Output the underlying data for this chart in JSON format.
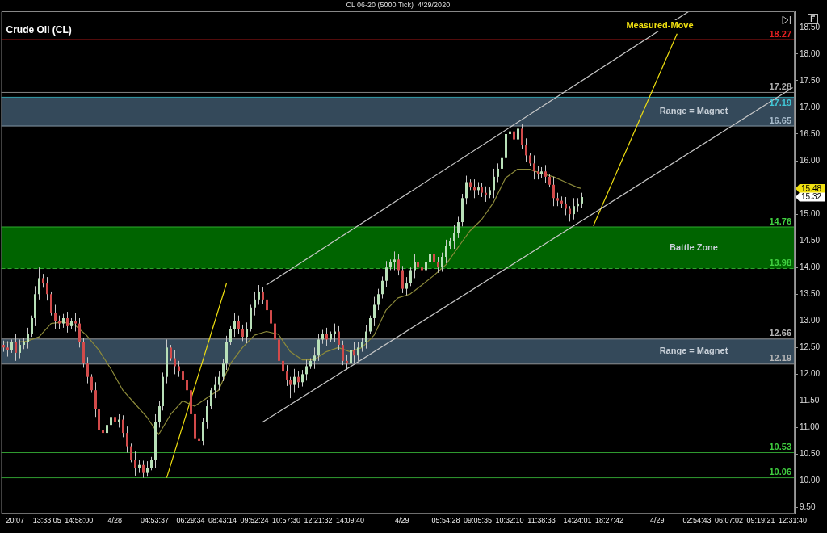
{
  "chart_data": {
    "type": "candlestick",
    "title": "Crude Oil (CL)",
    "subtitle": "CL 06-20 (5000 Tick)  4/29/2020",
    "marker": "none",
    "categories": [
      null,
      null,
      null,
      "20:07",
      null,
      null,
      null,
      null,
      null,
      null,
      null,
      "13:33:05",
      null,
      null,
      null,
      null,
      null,
      null,
      null,
      "14:58:00",
      null,
      null,
      null,
      null,
      null,
      null,
      null,
      null,
      "4/28",
      null,
      null,
      null,
      null,
      null,
      null,
      null,
      null,
      null,
      "04:53:37",
      null,
      null,
      null,
      null,
      null,
      null,
      null,
      null,
      "06:29:34",
      null,
      null,
      null,
      null,
      null,
      null,
      null,
      "08:43:14",
      null,
      null,
      null,
      null,
      null,
      null,
      null,
      "09:52:24",
      null,
      null,
      null,
      null,
      null,
      null,
      null,
      "10:57:30",
      null,
      null,
      null,
      null,
      null,
      null,
      null,
      "12:21:32",
      null,
      null,
      null,
      null,
      null,
      null,
      null,
      "14:09:40",
      null,
      null,
      null,
      null,
      null,
      null,
      null,
      null,
      null,
      null,
      null,
      null,
      "4/29",
      null,
      null,
      null,
      null,
      null,
      null,
      null,
      null,
      null,
      null,
      "05:54:28",
      null,
      null,
      null,
      null,
      null,
      null,
      null,
      "09:05:35",
      null,
      null,
      null,
      null,
      null,
      null,
      null,
      "10:32:10",
      null,
      null,
      null,
      null,
      null,
      null,
      null,
      "11:38:33",
      null,
      null,
      null,
      null,
      null,
      null,
      null,
      null,
      "14:24:01",
      null,
      null,
      null,
      null,
      null,
      null,
      null,
      "18:27:42",
      null,
      null,
      null,
      null,
      null,
      null,
      null,
      null,
      null,
      null,
      null,
      "4/29",
      null,
      null,
      null,
      null,
      null,
      null,
      null,
      null,
      null,
      "02:54:43",
      null,
      null,
      null,
      null,
      null,
      null,
      null,
      "06:07:02",
      null,
      null,
      null,
      null,
      null,
      null,
      null,
      "09:19:21",
      null,
      null,
      null,
      null,
      null,
      null,
      null,
      "12:31:40"
    ],
    "ohlc": [
      [
        12.55,
        12.63,
        12.42,
        12.5
      ],
      [
        12.5,
        12.62,
        12.33,
        12.45
      ],
      [
        12.45,
        12.65,
        12.4,
        12.6
      ],
      [
        12.6,
        12.75,
        12.25,
        12.4
      ],
      [
        12.4,
        12.65,
        12.3,
        12.55
      ],
      [
        12.55,
        12.68,
        12.47,
        12.6
      ],
      [
        12.6,
        12.87,
        12.48,
        12.75
      ],
      [
        12.75,
        13.1,
        12.7,
        13.05
      ],
      [
        13.05,
        13.65,
        12.9,
        13.5
      ],
      [
        13.5,
        14.0,
        13.4,
        13.8
      ],
      [
        13.8,
        13.88,
        13.62,
        13.7
      ],
      [
        13.7,
        13.82,
        13.38,
        13.5
      ],
      [
        13.5,
        13.55,
        13.1,
        13.15
      ],
      [
        13.15,
        13.3,
        12.85,
        13.0
      ],
      [
        13.0,
        13.1,
        12.85,
        12.95
      ],
      [
        12.95,
        13.13,
        12.87,
        13.05
      ],
      [
        13.05,
        13.17,
        12.78,
        12.9
      ],
      [
        12.9,
        13.05,
        12.85,
        13.0
      ],
      [
        13.0,
        13.15,
        12.8,
        12.95
      ],
      [
        12.95,
        13.05,
        12.5,
        12.6
      ],
      [
        12.6,
        12.68,
        12.12,
        12.2
      ],
      [
        12.2,
        12.32,
        11.83,
        11.95
      ],
      [
        11.95,
        12.0,
        11.65,
        11.7
      ],
      [
        11.7,
        11.85,
        11.2,
        11.35
      ],
      [
        11.35,
        11.45,
        10.85,
        10.95
      ],
      [
        10.95,
        11.03,
        10.82,
        10.9
      ],
      [
        10.9,
        11.17,
        10.78,
        11.05
      ],
      [
        11.05,
        11.25,
        11.0,
        11.2
      ],
      [
        11.2,
        11.35,
        10.95,
        11.1
      ],
      [
        11.1,
        11.25,
        11.0,
        11.15
      ],
      [
        11.15,
        11.23,
        10.82,
        10.9
      ],
      [
        10.9,
        11.02,
        10.53,
        10.65
      ],
      [
        10.65,
        10.7,
        10.35,
        10.4
      ],
      [
        10.4,
        10.55,
        10.1,
        10.25
      ],
      [
        10.25,
        10.4,
        10.15,
        10.3
      ],
      [
        10.3,
        10.38,
        10.06,
        10.15
      ],
      [
        10.15,
        10.37,
        10.08,
        10.25
      ],
      [
        10.25,
        10.45,
        10.2,
        10.4
      ],
      [
        10.4,
        11.25,
        10.25,
        11.1
      ],
      [
        11.1,
        11.5,
        11.0,
        11.4
      ],
      [
        11.4,
        12.03,
        11.32,
        11.95
      ],
      [
        11.95,
        12.65,
        11.83,
        12.5
      ],
      [
        12.5,
        12.55,
        12.25,
        12.3
      ],
      [
        12.3,
        12.45,
        12.0,
        12.15
      ],
      [
        12.15,
        12.25,
        11.95,
        12.05
      ],
      [
        12.05,
        12.13,
        11.82,
        11.9
      ],
      [
        11.9,
        12.02,
        11.58,
        11.7
      ],
      [
        11.7,
        11.75,
        11.2,
        11.25
      ],
      [
        11.25,
        11.4,
        10.65,
        10.8
      ],
      [
        10.8,
        10.9,
        10.53,
        10.75
      ],
      [
        10.75,
        11.18,
        10.67,
        11.1
      ],
      [
        11.1,
        11.52,
        10.98,
        11.4
      ],
      [
        11.4,
        11.75,
        11.35,
        11.7
      ],
      [
        11.7,
        11.95,
        11.55,
        11.8
      ],
      [
        11.8,
        12.05,
        11.7,
        11.95
      ],
      [
        11.95,
        12.28,
        11.87,
        12.2
      ],
      [
        12.2,
        12.72,
        12.08,
        12.6
      ],
      [
        12.6,
        12.9,
        12.55,
        12.85
      ],
      [
        12.85,
        13.15,
        12.7,
        13.0
      ],
      [
        13.0,
        13.1,
        12.75,
        12.85
      ],
      [
        12.85,
        12.93,
        12.62,
        12.7
      ],
      [
        12.7,
        12.97,
        12.58,
        12.85
      ],
      [
        12.85,
        13.3,
        12.8,
        13.25
      ],
      [
        13.25,
        13.55,
        13.1,
        13.4
      ],
      [
        13.4,
        13.67,
        13.3,
        13.55
      ],
      [
        13.55,
        13.63,
        13.32,
        13.4
      ],
      [
        13.4,
        13.52,
        13.08,
        13.2
      ],
      [
        13.2,
        13.25,
        12.9,
        12.95
      ],
      [
        12.95,
        13.1,
        12.5,
        12.65
      ],
      [
        12.65,
        12.75,
        12.15,
        12.25
      ],
      [
        12.25,
        12.33,
        11.97,
        12.05
      ],
      [
        12.05,
        12.17,
        11.78,
        11.9
      ],
      [
        11.9,
        11.95,
        11.55,
        11.8
      ],
      [
        11.8,
        12.1,
        11.65,
        11.95
      ],
      [
        11.95,
        12.05,
        11.75,
        11.85
      ],
      [
        11.85,
        12.08,
        11.77,
        12.0
      ],
      [
        12.0,
        12.27,
        11.88,
        12.15
      ],
      [
        12.15,
        12.3,
        12.1,
        12.25
      ],
      [
        12.25,
        12.5,
        12.1,
        12.35
      ],
      [
        12.35,
        12.75,
        12.25,
        12.65
      ],
      [
        12.65,
        12.83,
        12.57,
        12.75
      ],
      [
        12.75,
        12.87,
        12.53,
        12.65
      ],
      [
        12.65,
        12.8,
        12.6,
        12.75
      ],
      [
        12.75,
        12.95,
        12.6,
        12.8
      ],
      [
        12.8,
        12.9,
        12.45,
        12.55
      ],
      [
        12.55,
        12.63,
        12.17,
        12.25
      ],
      [
        12.25,
        12.37,
        12.08,
        12.2
      ],
      [
        12.2,
        12.5,
        12.15,
        12.45
      ],
      [
        12.45,
        12.6,
        12.2,
        12.35
      ],
      [
        12.35,
        12.6,
        12.25,
        12.5
      ],
      [
        12.5,
        12.68,
        12.42,
        12.6
      ],
      [
        12.6,
        12.92,
        12.48,
        12.8
      ],
      [
        12.8,
        13.1,
        12.75,
        13.05
      ],
      [
        13.05,
        13.45,
        12.9,
        13.3
      ],
      [
        13.3,
        13.6,
        13.2,
        13.5
      ],
      [
        13.5,
        13.83,
        13.42,
        13.75
      ],
      [
        13.75,
        14.12,
        13.63,
        14.0
      ],
      [
        14.0,
        14.15,
        13.95,
        14.1
      ],
      [
        14.1,
        14.3,
        13.95,
        14.15
      ],
      [
        14.15,
        14.25,
        13.85,
        13.95
      ],
      [
        13.95,
        14.03,
        13.52,
        13.6
      ],
      [
        13.6,
        13.82,
        13.48,
        13.7
      ],
      [
        13.7,
        14.0,
        13.65,
        13.95
      ],
      [
        13.95,
        14.25,
        13.8,
        14.1
      ],
      [
        14.1,
        14.2,
        13.9,
        14.0
      ],
      [
        14.0,
        14.08,
        13.87,
        13.95
      ],
      [
        13.95,
        14.22,
        13.83,
        14.1
      ],
      [
        14.1,
        14.3,
        14.05,
        14.25
      ],
      [
        14.25,
        14.4,
        13.95,
        14.1
      ],
      [
        14.1,
        14.2,
        13.9,
        14.0
      ],
      [
        14.0,
        14.28,
        13.92,
        14.2
      ],
      [
        14.2,
        14.52,
        14.08,
        14.4
      ],
      [
        14.4,
        14.55,
        14.35,
        14.5
      ],
      [
        14.5,
        14.8,
        14.35,
        14.65
      ],
      [
        14.65,
        14.95,
        14.55,
        14.85
      ],
      [
        14.85,
        15.38,
        14.77,
        15.3
      ],
      [
        15.3,
        15.72,
        15.18,
        15.6
      ],
      [
        15.6,
        15.65,
        15.45,
        15.5
      ],
      [
        15.5,
        15.65,
        15.3,
        15.45
      ],
      [
        15.45,
        15.6,
        15.35,
        15.5
      ],
      [
        15.5,
        15.58,
        15.32,
        15.4
      ],
      [
        15.4,
        15.52,
        15.23,
        15.35
      ],
      [
        15.35,
        15.5,
        15.3,
        15.45
      ],
      [
        15.45,
        15.85,
        15.3,
        15.7
      ],
      [
        15.7,
        15.95,
        15.6,
        15.85
      ],
      [
        15.85,
        16.13,
        15.77,
        16.05
      ],
      [
        16.05,
        16.62,
        15.93,
        16.5
      ],
      [
        16.5,
        16.73,
        16.4,
        16.55
      ],
      [
        16.55,
        16.6,
        16.25,
        16.4
      ],
      [
        16.4,
        16.77,
        16.3,
        16.6
      ],
      [
        16.6,
        16.68,
        16.22,
        16.3
      ],
      [
        16.3,
        16.42,
        15.98,
        16.1
      ],
      [
        16.1,
        16.15,
        15.9,
        15.95
      ],
      [
        15.95,
        16.1,
        15.65,
        15.8
      ],
      [
        15.8,
        15.9,
        15.65,
        15.75
      ],
      [
        15.75,
        15.88,
        15.67,
        15.8
      ],
      [
        15.8,
        15.92,
        15.58,
        15.7
      ],
      [
        15.7,
        15.75,
        15.5,
        15.55
      ],
      [
        15.55,
        15.7,
        15.15,
        15.3
      ],
      [
        15.3,
        15.4,
        15.15,
        15.25
      ],
      [
        15.25,
        15.33,
        15.12,
        15.2
      ],
      [
        15.2,
        15.32,
        14.98,
        15.1
      ],
      [
        15.1,
        15.15,
        14.86,
        15.0
      ],
      [
        15.0,
        15.3,
        14.9,
        15.15
      ],
      [
        15.15,
        15.3,
        15.05,
        15.2
      ],
      [
        15.2,
        15.4,
        15.12,
        15.32
      ],
      null,
      null,
      null,
      null,
      null,
      null,
      null,
      null,
      null,
      null,
      null,
      null,
      null,
      null,
      null,
      null,
      null,
      null,
      null,
      null,
      null,
      null,
      null,
      null,
      null,
      null,
      null,
      null,
      null,
      null,
      null,
      null,
      null,
      null,
      null,
      null,
      null,
      null,
      null,
      null,
      null,
      null,
      null,
      null,
      null,
      null,
      null,
      null,
      null,
      null,
      null,
      null,
      null
    ],
    "series": [
      {
        "type": "line",
        "color": "#8c8a3a",
        "values": [
          12.6,
          null,
          null,
          12.6,
          null,
          null,
          12.62,
          null,
          null,
          12.7,
          null,
          null,
          12.95,
          null,
          null,
          12.98,
          null,
          null,
          12.92,
          null,
          null,
          12.72,
          null,
          null,
          12.45,
          null,
          null,
          12.1,
          null,
          null,
          11.7,
          null,
          null,
          11.45,
          null,
          null,
          11.2,
          null,
          null,
          10.87,
          null,
          null,
          11.25,
          null,
          null,
          11.5,
          null,
          null,
          11.4,
          null,
          null,
          11.55,
          null,
          null,
          11.7,
          null,
          null,
          12.2,
          null,
          null,
          12.5,
          null,
          null,
          12.73,
          null,
          null,
          12.8,
          null,
          null,
          12.75,
          null,
          null,
          12.42,
          null,
          null,
          12.27,
          null,
          null,
          12.27,
          null,
          null,
          12.42,
          null,
          null,
          12.5,
          null,
          null,
          12.42,
          null,
          null,
          12.5,
          null,
          null,
          12.73,
          null,
          null,
          13.2,
          null,
          null,
          13.43,
          null,
          null,
          13.5,
          null,
          null,
          13.67,
          null,
          null,
          13.85,
          null,
          null,
          14.05,
          null,
          null,
          14.37,
          null,
          null,
          14.68,
          null,
          null,
          14.9,
          null,
          null,
          15.22,
          null,
          null,
          15.68,
          null,
          null,
          15.84,
          null,
          null,
          15.84,
          null,
          null,
          15.76,
          null,
          null,
          15.7,
          null,
          null,
          15.6,
          null,
          null,
          15.5,
          15.48,
          null,
          null,
          null,
          null,
          null,
          null,
          null,
          null,
          null,
          null,
          null,
          null,
          null,
          null,
          null,
          null,
          null,
          null,
          null,
          null,
          null,
          null,
          null,
          null,
          null,
          null,
          null,
          null,
          null,
          null,
          null,
          null,
          null,
          null,
          null,
          null,
          null,
          null,
          null,
          null,
          null,
          null,
          null,
          null,
          null,
          null,
          null,
          null,
          null,
          null,
          null,
          null,
          null
        ]
      },
      {
        "type": "line",
        "color": "#c8c8c8",
        "values": [
          null,
          null,
          null,
          null,
          null,
          null,
          null,
          null,
          null,
          null,
          null,
          null,
          null,
          null,
          null,
          null,
          null,
          null,
          null,
          null,
          null,
          null,
          null,
          null,
          null,
          null,
          null,
          null,
          null,
          null,
          null,
          null,
          null,
          null,
          null,
          null,
          null,
          null,
          null,
          null,
          null,
          null,
          null,
          null,
          null,
          null,
          null,
          null,
          null,
          null,
          null,
          null,
          null,
          null,
          null,
          null,
          null,
          null,
          null,
          null,
          null,
          null,
          null,
          null,
          null,
          null,
          13.67,
          null,
          null,
          null,
          null,
          null,
          null,
          null,
          null,
          null,
          null,
          null,
          null,
          null,
          null,
          null,
          null,
          null,
          null,
          null,
          null,
          null,
          null,
          null,
          null,
          null,
          null,
          null,
          null,
          null,
          null,
          null,
          null,
          null,
          null,
          null,
          null,
          null,
          null,
          null,
          null,
          null,
          null,
          null,
          null,
          null,
          null,
          null,
          null,
          null,
          null,
          null,
          null,
          null,
          null,
          null,
          null,
          null,
          null,
          null,
          null,
          null,
          null,
          null,
          null,
          null,
          null,
          null,
          null,
          null,
          null,
          null,
          null,
          null,
          null,
          null,
          null,
          null,
          null,
          null,
          null,
          null,
          null,
          null,
          null,
          null,
          null,
          null,
          null,
          null,
          null,
          null,
          null,
          null,
          null,
          null,
          null,
          null,
          null,
          null,
          null,
          null,
          null,
          null,
          null,
          null,
          18.8,
          null,
          null,
          null,
          null,
          null,
          null,
          null,
          null,
          null,
          null,
          null,
          null,
          null,
          null,
          null,
          null,
          null,
          null,
          null,
          null,
          null,
          null,
          null,
          null,
          null,
          null
        ]
      },
      {
        "type": "line",
        "color": "#c8c8c8",
        "values": [
          null,
          null,
          null,
          null,
          null,
          null,
          null,
          null,
          null,
          null,
          null,
          null,
          null,
          null,
          null,
          null,
          null,
          null,
          null,
          null,
          null,
          null,
          null,
          null,
          null,
          null,
          null,
          null,
          null,
          null,
          null,
          null,
          null,
          null,
          null,
          null,
          null,
          null,
          null,
          null,
          null,
          null,
          null,
          null,
          null,
          null,
          null,
          null,
          null,
          null,
          null,
          null,
          null,
          null,
          null,
          null,
          null,
          null,
          null,
          null,
          null,
          null,
          null,
          null,
          null,
          11.1,
          null,
          null,
          null,
          null,
          null,
          null,
          null,
          null,
          null,
          null,
          null,
          null,
          null,
          null,
          null,
          null,
          null,
          null,
          null,
          null,
          null,
          null,
          null,
          null,
          null,
          null,
          null,
          null,
          null,
          null,
          null,
          null,
          null,
          null,
          null,
          null,
          null,
          null,
          null,
          null,
          null,
          null,
          null,
          null,
          null,
          null,
          null,
          null,
          null,
          null,
          null,
          null,
          null,
          null,
          null,
          null,
          null,
          null,
          null,
          null,
          null,
          null,
          null,
          null,
          null,
          null,
          null,
          null,
          null,
          null,
          null,
          null,
          null,
          null,
          null,
          null,
          null,
          null,
          null,
          null,
          null,
          null,
          null,
          null,
          null,
          null,
          null,
          null,
          null,
          null,
          null,
          null,
          null,
          null,
          null,
          null,
          null,
          null,
          null,
          null,
          null,
          null,
          null,
          null,
          null,
          null,
          null,
          null,
          null,
          null,
          null,
          null,
          null,
          null,
          null,
          null,
          null,
          null,
          null,
          null,
          null,
          null,
          null,
          null,
          null,
          null,
          null,
          null,
          null,
          null,
          null,
          null,
          17.37
        ]
      },
      {
        "type": "line",
        "color": "#f0e010",
        "values": [
          null,
          null,
          null,
          null,
          null,
          null,
          null,
          null,
          null,
          null,
          null,
          null,
          null,
          null,
          null,
          null,
          null,
          null,
          null,
          null,
          null,
          null,
          null,
          null,
          null,
          null,
          null,
          null,
          null,
          null,
          null,
          null,
          null,
          null,
          null,
          null,
          null,
          null,
          null,
          null,
          null,
          10.06,
          null,
          null,
          null,
          null,
          null,
          null,
          null,
          null,
          null,
          null,
          null,
          null,
          null,
          null,
          13.7,
          null,
          null,
          null,
          null,
          null,
          null,
          null,
          null,
          null,
          null,
          null,
          null,
          null,
          null,
          null,
          null,
          null,
          null,
          null,
          null,
          null,
          null,
          null,
          null,
          null,
          null,
          null,
          null,
          null,
          null,
          null,
          null,
          null,
          null,
          null,
          null,
          null,
          null,
          null,
          null,
          null,
          null,
          null,
          null,
          null,
          null,
          null,
          null,
          null,
          null,
          null,
          null,
          null,
          null,
          null,
          null,
          null,
          null,
          null,
          null,
          null,
          null,
          null,
          null,
          null,
          null,
          null,
          null,
          null,
          null,
          null,
          null,
          null,
          null,
          null,
          null,
          null,
          null,
          null,
          null,
          null,
          null,
          null,
          null,
          null,
          null,
          null,
          null,
          null,
          null,
          null,
          null,
          null,
          null,
          null,
          null,
          null,
          null,
          null,
          null,
          null,
          null,
          null,
          null,
          null,
          null,
          null,
          null,
          null,
          null,
          null,
          null,
          null,
          null,
          null,
          null,
          null,
          null,
          null,
          null,
          null,
          null,
          null,
          null,
          null,
          null,
          null,
          null,
          null,
          null,
          null,
          null,
          null,
          null,
          null,
          null,
          null,
          null,
          null,
          null,
          null,
          null
        ]
      },
      {
        "type": "line",
        "color": "#f0e010",
        "values": [
          null,
          null,
          null,
          null,
          null,
          null,
          null,
          null,
          null,
          null,
          null,
          null,
          null,
          null,
          null,
          null,
          null,
          null,
          null,
          null,
          null,
          null,
          null,
          null,
          null,
          null,
          null,
          null,
          null,
          null,
          null,
          null,
          null,
          null,
          null,
          null,
          null,
          null,
          null,
          null,
          null,
          null,
          null,
          null,
          null,
          null,
          null,
          null,
          null,
          null,
          null,
          null,
          null,
          null,
          null,
          null,
          null,
          null,
          null,
          null,
          null,
          null,
          null,
          null,
          null,
          null,
          null,
          null,
          null,
          null,
          null,
          null,
          null,
          null,
          null,
          null,
          null,
          null,
          null,
          null,
          null,
          null,
          null,
          null,
          null,
          null,
          null,
          null,
          null,
          null,
          null,
          null,
          null,
          null,
          null,
          null,
          null,
          null,
          null,
          null,
          null,
          null,
          null,
          null,
          null,
          null,
          null,
          null,
          null,
          null,
          null,
          null,
          null,
          null,
          null,
          null,
          null,
          null,
          null,
          null,
          null,
          null,
          null,
          null,
          null,
          null,
          null,
          null,
          null,
          null,
          null,
          null,
          null,
          null,
          null,
          null,
          null,
          null,
          null,
          null,
          null,
          null,
          null,
          null,
          null,
          null,
          null,
          null,
          14.78,
          null,
          null,
          null,
          null,
          null,
          null,
          null,
          null,
          null,
          null,
          null,
          null,
          null,
          null,
          null,
          null,
          null,
          null,
          null,
          null,
          18.38,
          null,
          null,
          null,
          null,
          null,
          null,
          null,
          null,
          null,
          null,
          null,
          null,
          null,
          null,
          null,
          null,
          null,
          null,
          null,
          null,
          null,
          null,
          null,
          null,
          null,
          null,
          null,
          null,
          null
        ]
      }
    ],
    "ylim": [
      9.4,
      18.8
    ],
    "yticks": [
      {
        "value": 9.5,
        "label": "9.50"
      },
      {
        "value": 10,
        "label": "10.00"
      },
      {
        "value": 10.5,
        "label": "10.50"
      },
      {
        "value": 11,
        "label": "11.00"
      },
      {
        "value": 11.5,
        "label": "11.50"
      },
      {
        "value": 12,
        "label": "12.00"
      },
      {
        "value": 12.5,
        "label": "12.50"
      },
      {
        "value": 13,
        "label": "13.00"
      },
      {
        "value": 13.5,
        "label": "13.50"
      },
      {
        "value": 14,
        "label": "14.00"
      },
      {
        "value": 14.5,
        "label": "14.50"
      },
      {
        "value": 15,
        "label": "15.00"
      },
      {
        "value": 15.5,
        "label": null
      },
      {
        "value": 16,
        "label": "16.00"
      },
      {
        "value": 16.5,
        "label": "16.50"
      },
      {
        "value": 17,
        "label": "17.00"
      },
      {
        "value": 17.5,
        "label": "17.50"
      },
      {
        "value": 18,
        "label": "18.00"
      },
      {
        "value": 18.5,
        "label": "18.50"
      }
    ],
    "bands": [
      {
        "axis": "y",
        "from": 16.65,
        "to": 17.19,
        "label": "Range = Magnet",
        "color": "#34495a"
      },
      {
        "axis": "y",
        "from": 13.98,
        "to": 14.76,
        "label": "Battle Zone",
        "color": "#006400"
      },
      {
        "axis": "y",
        "from": 12.19,
        "to": 12.66,
        "label": "Range = Magnet",
        "color": "#34495a"
      }
    ],
    "ref_lines": [
      {
        "axis": "y",
        "value": 18.27,
        "label": "18.27",
        "color": "#e02020"
      },
      {
        "axis": "y",
        "value": 17.28,
        "label": "17.28",
        "color": "#b0b0b0"
      },
      {
        "axis": "y",
        "value": 17.19,
        "label": "17.19",
        "color": "#40c8d8"
      },
      {
        "axis": "y",
        "value": 16.65,
        "label": "16.65",
        "color": "#a8bccc"
      },
      {
        "axis": "y",
        "value": 14.76,
        "label": "14.76",
        "color": "#40d040"
      },
      {
        "axis": "y",
        "value": 13.98,
        "label": "13.98",
        "color": "#40d040",
        "line_style": "dashed"
      },
      {
        "axis": "y",
        "value": 12.66,
        "label": "12.66",
        "color": "#b8b8b8"
      },
      {
        "axis": "y",
        "value": 12.19,
        "label": "12.19",
        "color": "#b8b8b8"
      },
      {
        "axis": "y",
        "value": 10.53,
        "label": "10.53",
        "color": "#40d040"
      },
      {
        "axis": "y",
        "value": 10.06,
        "label": "10.06",
        "color": "#40d040"
      }
    ],
    "annotations": [
      "Measured-Move",
      {
        "text": "15.48",
        "y": 15.48
      },
      {
        "text": "15.32",
        "y": 15.32
      }
    ]
  }
}
